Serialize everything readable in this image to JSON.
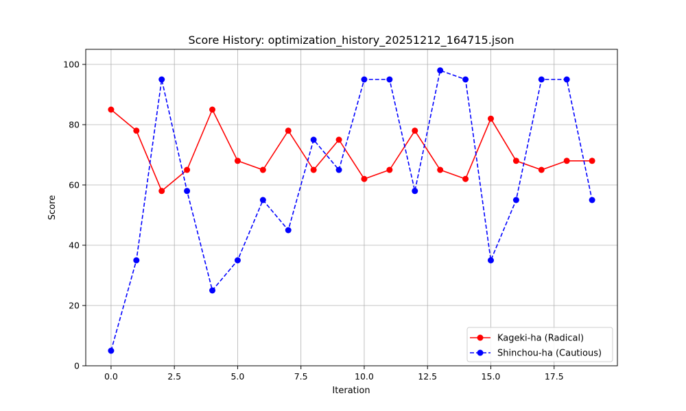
{
  "chart_data": {
    "type": "line",
    "title": "Score History: optimization_history_20251212_164715.json",
    "xlabel": "Iteration",
    "ylabel": "Score",
    "xlim": [
      -1,
      20
    ],
    "ylim": [
      0,
      105
    ],
    "xticks": [
      "0.0",
      "2.5",
      "5.0",
      "7.5",
      "10.0",
      "12.5",
      "15.0",
      "17.5"
    ],
    "xtick_values": [
      0,
      2.5,
      5,
      7.5,
      10,
      12.5,
      15,
      17.5
    ],
    "yticks": [
      "0",
      "20",
      "40",
      "60",
      "80",
      "100"
    ],
    "ytick_values": [
      0,
      20,
      40,
      60,
      80,
      100
    ],
    "grid": true,
    "legend_position": "bottom-right",
    "x": [
      0,
      1,
      2,
      3,
      4,
      5,
      6,
      7,
      8,
      9,
      10,
      11,
      12,
      13,
      14,
      15,
      16,
      17,
      18,
      19
    ],
    "series": [
      {
        "name": "Kageki-ha (Radical)",
        "color": "#ff0000",
        "line_style": "solid",
        "marker": "circle",
        "values": [
          85,
          78,
          58,
          65,
          85,
          68,
          65,
          78,
          65,
          75,
          62,
          65,
          78,
          65,
          62,
          82,
          68,
          65,
          68,
          68
        ]
      },
      {
        "name": "Shinchou-ha (Cautious)",
        "color": "#0000ff",
        "line_style": "dashed",
        "marker": "circle",
        "values": [
          5,
          35,
          95,
          58,
          25,
          35,
          55,
          45,
          75,
          65,
          95,
          95,
          58,
          98,
          95,
          35,
          55,
          95,
          95,
          55
        ]
      }
    ]
  }
}
